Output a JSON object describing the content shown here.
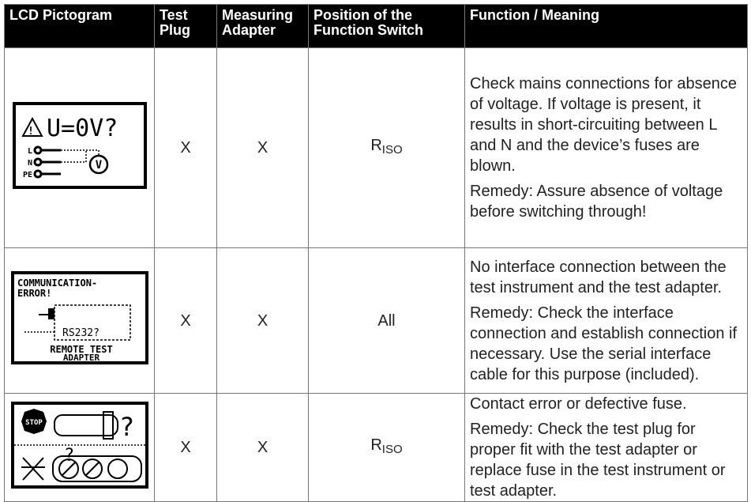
{
  "table": {
    "header": [
      "LCD Pictogram",
      "Test Plug",
      "Measuring Adapter",
      "Position of the Function Switch",
      "Function / Meaning"
    ],
    "rows": [
      {
        "pictogram": [
          "U=0V?",
          "L",
          "N",
          "PE",
          "V"
        ],
        "test_plug": "X",
        "measuring_adapter": "X",
        "switch": {
          "main": "R",
          "sub": "ISO"
        },
        "function": [
          "Check mains connections for absence of voltage. If voltage is present, it results in short-circuiting between L and N and the device’s fuses are blown.",
          "Remedy: Assure absence of voltage before switching through!"
        ]
      },
      {
        "pictogram": [
          "COMMUNICATION-",
          "ERROR!",
          "RS232?",
          "REMOTE TEST",
          "ADAPTER"
        ],
        "test_plug": "X",
        "measuring_adapter": "X",
        "switch": {
          "main": "All"
        },
        "function": [
          "No interface connection between the test instrument and the test adapter.",
          "Remedy: Check the interface connection and establish connection if necessary. Use the serial interface cable for this purpose (included)."
        ]
      },
      {
        "pictogram": [
          "STOP",
          "?",
          "?"
        ],
        "test_plug": "X",
        "measuring_adapter": "X",
        "switch": {
          "main": "R",
          "sub": "ISO"
        },
        "function": [
          "Contact error or defective fuse.",
          "Remedy: Check the test plug for proper fit with the test adapter or replace fuse in the test instrument or test adapter."
        ]
      }
    ]
  }
}
